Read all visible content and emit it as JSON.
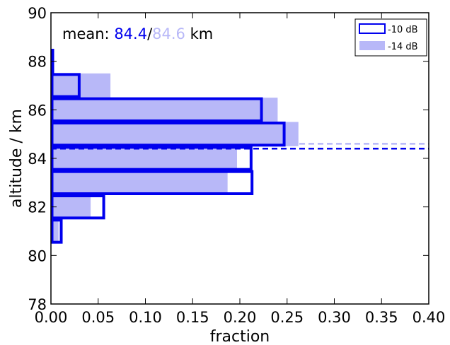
{
  "chart_data": {
    "type": "bar",
    "orientation": "horizontal",
    "xlabel": "fraction",
    "ylabel": "altitude / km",
    "xlim": [
      0.0,
      0.4
    ],
    "ylim": [
      78,
      90
    ],
    "xticks": [
      "0.00",
      "0.05",
      "0.10",
      "0.15",
      "0.20",
      "0.25",
      "0.30",
      "0.35",
      "0.40"
    ],
    "yticks": [
      "78",
      "80",
      "82",
      "84",
      "86",
      "88",
      "90"
    ],
    "bin_edges": [
      80.5,
      81.5,
      82.5,
      83.5,
      84.5,
      85.5,
      86.5,
      87.5,
      88.5
    ],
    "series": [
      {
        "name": "-10 dB",
        "style": "outline",
        "color": "#0000ee",
        "values": [
          0.012,
          0.057,
          0.214,
          0.213,
          0.248,
          0.224,
          0.031,
          0.003
        ],
        "mean": 84.4
      },
      {
        "name": "-14 dB",
        "style": "filled",
        "color": "#b8b8f8",
        "values": [
          0.008,
          0.042,
          0.187,
          0.197,
          0.262,
          0.24,
          0.063,
          0.002
        ],
        "mean": 84.6
      }
    ],
    "annotation": {
      "prefix": "mean: ",
      "value1": "84.4",
      "separator": "/",
      "value2": "84.6",
      "suffix": " km"
    },
    "legend": {
      "placement": "top-right",
      "entries": [
        "-10 dB",
        "-14 dB"
      ]
    }
  }
}
